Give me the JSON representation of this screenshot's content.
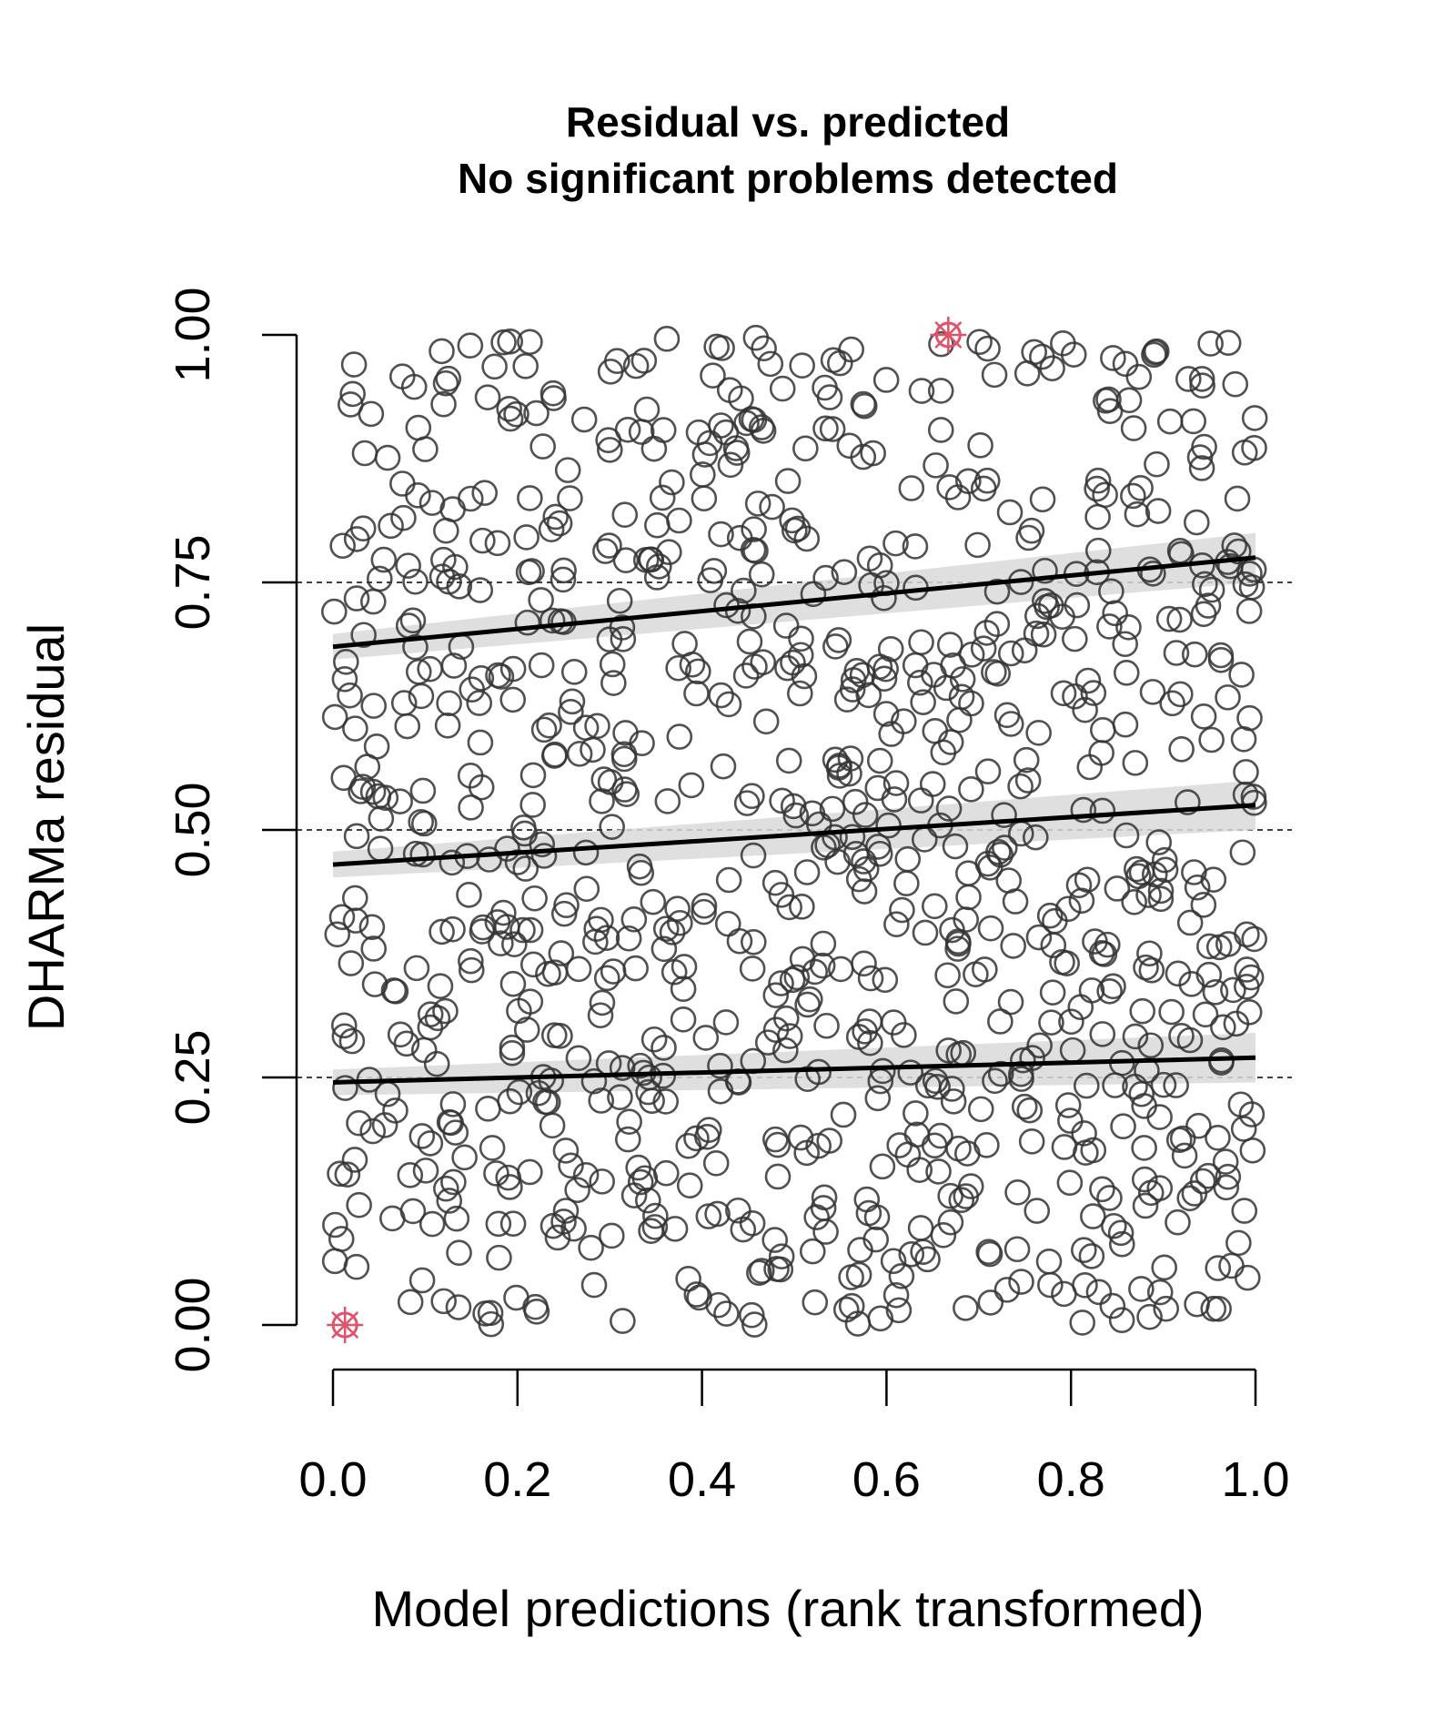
{
  "chart_data": {
    "type": "scatter",
    "title": "Residual vs. predicted",
    "subtitle": "No significant problems detected",
    "xlabel": "Model predictions (rank transformed)",
    "ylabel": "DHARMa residual",
    "xlim": [
      0,
      1
    ],
    "ylim": [
      0,
      1
    ],
    "x_ticks": [
      "0.0",
      "0.2",
      "0.4",
      "0.6",
      "0.8",
      "1.0"
    ],
    "y_ticks": [
      "0.00",
      "0.25",
      "0.50",
      "0.75",
      "1.00"
    ],
    "reference_lines": [
      0.25,
      0.5,
      0.75
    ],
    "colors": {
      "points": "#333333",
      "outliers": "#df536b",
      "quantile_lines": "#000000",
      "bands": "#d9d9d9"
    },
    "quantile_regressions": [
      {
        "quantile": 0.25,
        "x": [
          0,
          1
        ],
        "y": [
          0.245,
          0.27
        ]
      },
      {
        "quantile": 0.5,
        "x": [
          0,
          1
        ],
        "y": [
          0.465,
          0.525
        ]
      },
      {
        "quantile": 0.75,
        "x": [
          0,
          1
        ],
        "y": [
          0.685,
          0.775
        ]
      }
    ],
    "outliers": [
      {
        "x": 0.013,
        "y": 0.0
      },
      {
        "x": 0.667,
        "y": 1.0
      }
    ],
    "n_points": 1000
  }
}
